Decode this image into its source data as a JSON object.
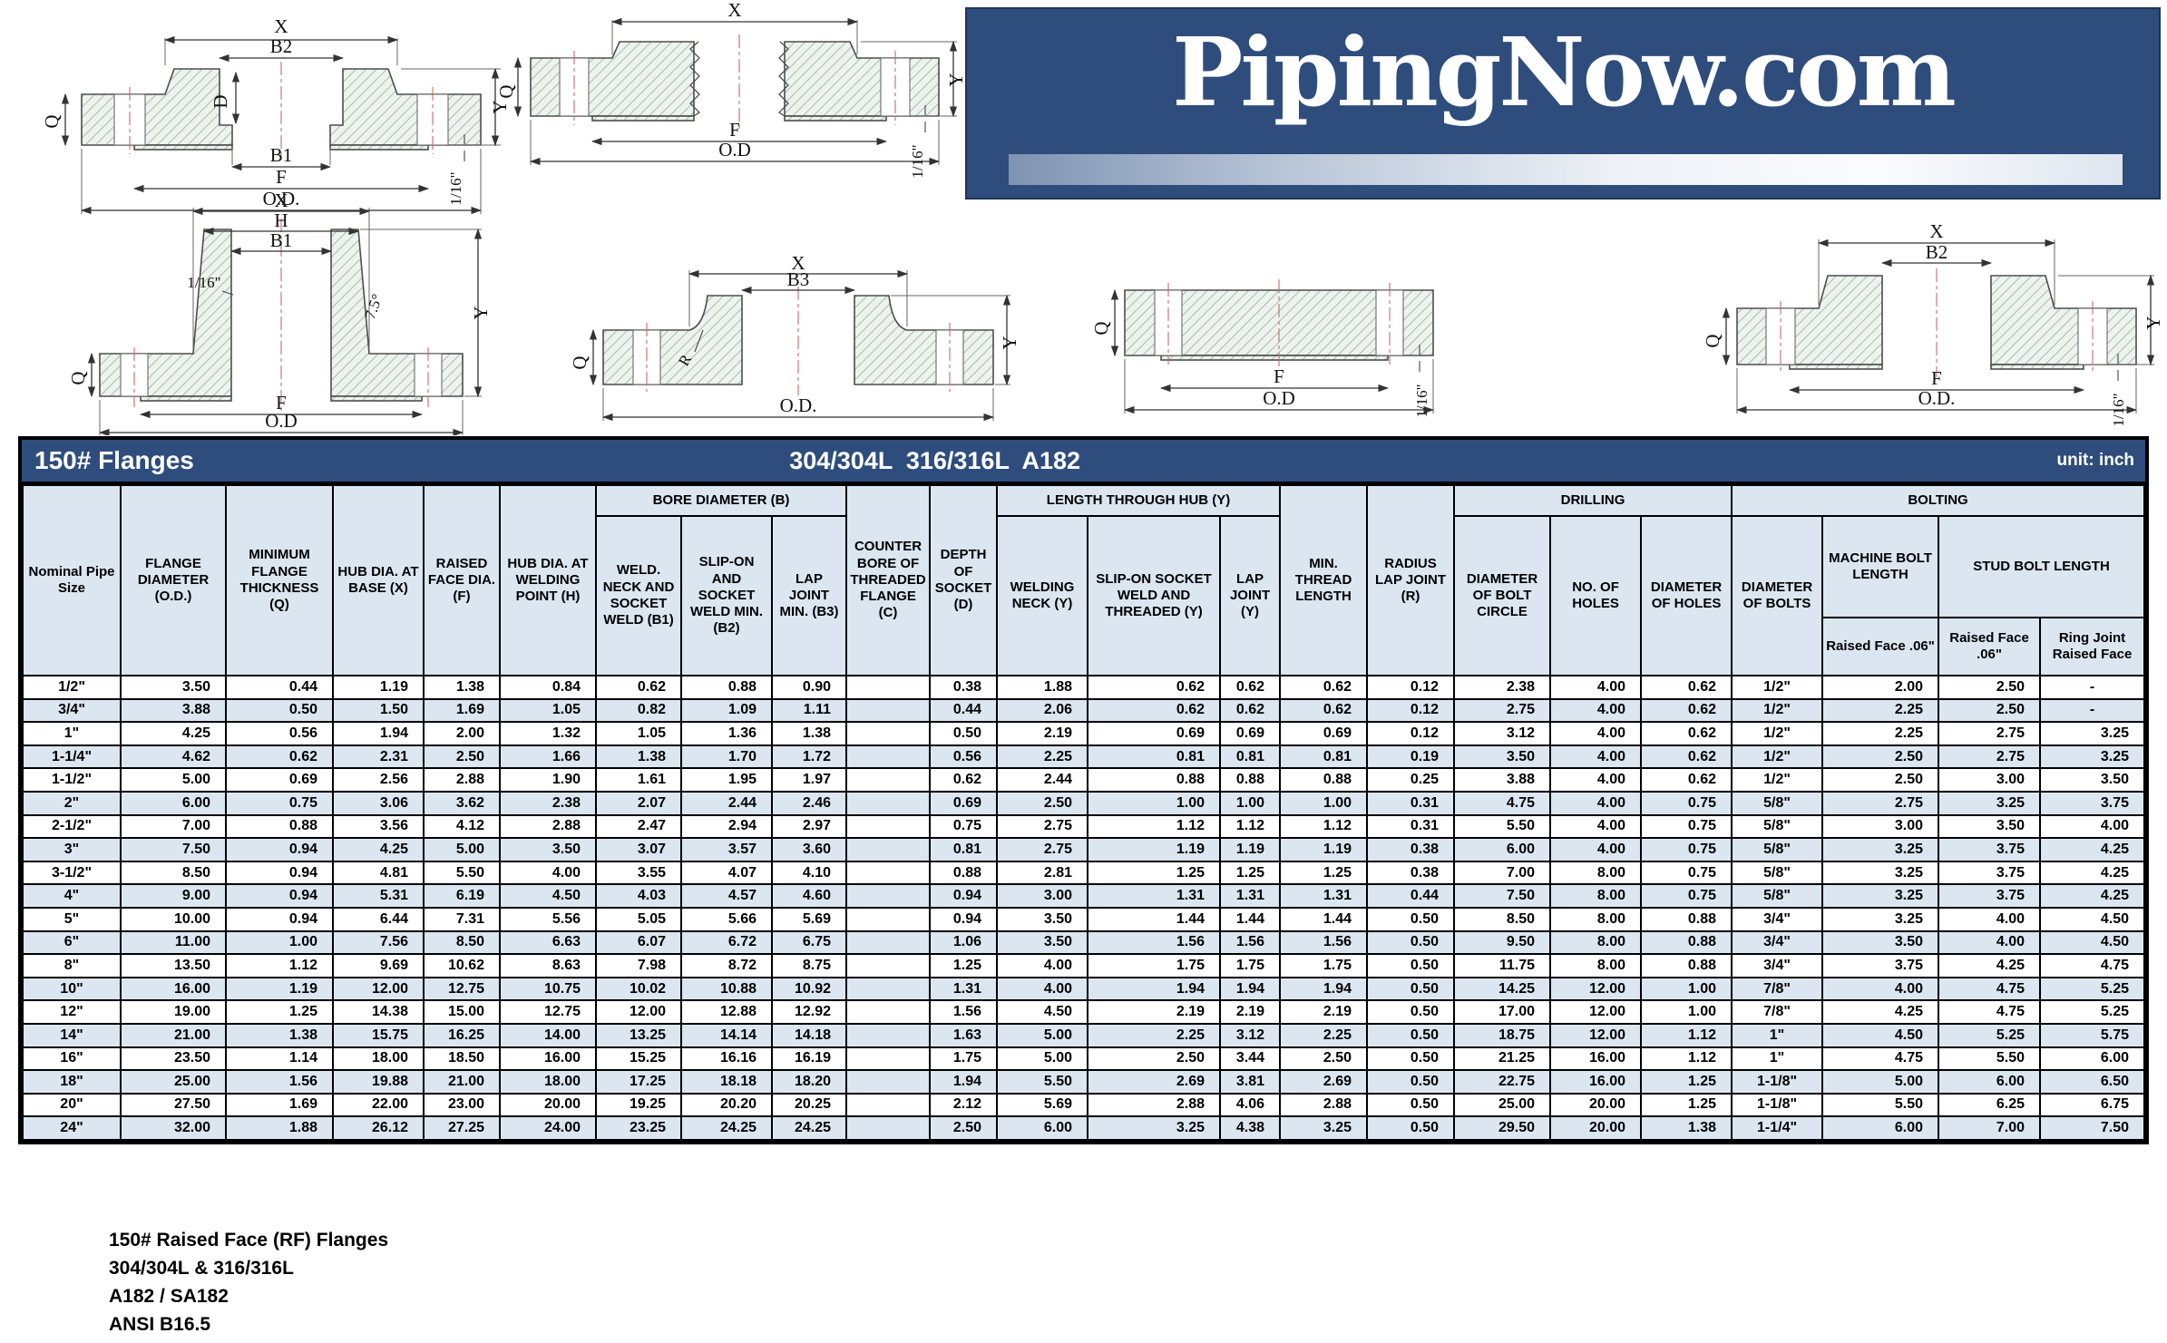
{
  "colors": {
    "banner_blue": "#2e4d7d",
    "header_light_blue": "#dbe6f1",
    "border_black": "#000000",
    "logo_text_white": "#ffffff"
  },
  "logo": {
    "text": "PipingNow.com"
  },
  "title_bar": {
    "left": "150# Flanges",
    "center": "304/304L  316/316L  A182",
    "right": "unit: inch"
  },
  "diagrams": [
    {
      "name": "socket-weld-flange-drawing",
      "labels": [
        "X",
        "B2",
        "D",
        "Q",
        "B1",
        "F",
        "O.D.",
        "Y",
        "1/16\""
      ]
    },
    {
      "name": "threaded-flange-drawing",
      "labels": [
        "X",
        "Q",
        "F",
        "O.D",
        "Y",
        "1/16\""
      ]
    },
    {
      "name": "weld-neck-flange-drawing",
      "labels": [
        "X",
        "H",
        "B1",
        "1/16\"",
        "7.5°",
        "Q",
        "F",
        "O.D",
        "Y"
      ]
    },
    {
      "name": "lap-joint-flange-drawing",
      "labels": [
        "X",
        "B3",
        "Q",
        "R",
        "O.D.",
        "Y"
      ]
    },
    {
      "name": "blind-flange-drawing",
      "labels": [
        "Q",
        "F",
        "O.D",
        "1/16\""
      ]
    },
    {
      "name": "slip-on-flange-drawing",
      "labels": [
        "X",
        "B2",
        "Q",
        "F",
        "O.D.",
        "Y",
        "1/16\""
      ]
    }
  ],
  "table": {
    "header": {
      "nominal": "Nominal Pipe Size",
      "flange_diameter": "FLANGE DIAMETER (O.D.)",
      "min_thickness": "MINIMUM FLANGE THICKNESS (Q)",
      "hub_dia_base": "HUB DIA. AT BASE (X)",
      "raised_face_dia": "RAISED FACE DIA. (F)",
      "hub_dia_welding": "HUB DIA. AT WELDING POINT (H)",
      "bore_group": "BORE DIAMETER (B)",
      "b1": "WELD. NECK AND SOCKET WELD (B1)",
      "b2": "SLIP-ON AND SOCKET WELD MIN. (B2)",
      "b3": "LAP JOINT MIN. (B3)",
      "counter_bore": "COUNTER BORE OF THREADED FLANGE (C)",
      "depth_socket": "DEPTH OF SOCKET (D)",
      "length_group": "LENGTH THROUGH HUB (Y)",
      "welding_neck": "WELDING NECK (Y)",
      "slip_on": "SLIP-ON SOCKET WELD AND THREADED (Y)",
      "lap_joint": "LAP JOINT (Y)",
      "min_thread": "MIN. THREAD LENGTH",
      "radius_lap": "RADIUS LAP JOINT (R)",
      "drilling_group": "DRILLING",
      "bolt_circle": "DIAMETER OF BOLT CIRCLE",
      "no_holes": "NO. OF HOLES",
      "dia_holes": "DIAMETER OF HOLES",
      "bolting_group": "BOLTING",
      "dia_bolts": "DIAMETER OF BOLTS",
      "machine_bolt": "MACHINE BOLT LENGTH",
      "stud_bolt": "STUD BOLT LENGTH",
      "rf06_machine": "Raised Face .06\"",
      "rf06_stud": "Raised Face .06\"",
      "ring_joint": "Ring Joint Raised Face"
    },
    "rows": [
      [
        "1/2\"",
        "3.50",
        "0.44",
        "1.19",
        "1.38",
        "0.84",
        "0.62",
        "0.88",
        "0.90",
        "",
        "0.38",
        "1.88",
        "0.62",
        "0.62",
        "0.62",
        "0.12",
        "2.38",
        "4.00",
        "0.62",
        "1/2\"",
        "2.00",
        "2.50",
        "-"
      ],
      [
        "3/4\"",
        "3.88",
        "0.50",
        "1.50",
        "1.69",
        "1.05",
        "0.82",
        "1.09",
        "1.11",
        "",
        "0.44",
        "2.06",
        "0.62",
        "0.62",
        "0.62",
        "0.12",
        "2.75",
        "4.00",
        "0.62",
        "1/2\"",
        "2.25",
        "2.50",
        "-"
      ],
      [
        "1\"",
        "4.25",
        "0.56",
        "1.94",
        "2.00",
        "1.32",
        "1.05",
        "1.36",
        "1.38",
        "",
        "0.50",
        "2.19",
        "0.69",
        "0.69",
        "0.69",
        "0.12",
        "3.12",
        "4.00",
        "0.62",
        "1/2\"",
        "2.25",
        "2.75",
        "3.25"
      ],
      [
        "1-1/4\"",
        "4.62",
        "0.62",
        "2.31",
        "2.50",
        "1.66",
        "1.38",
        "1.70",
        "1.72",
        "",
        "0.56",
        "2.25",
        "0.81",
        "0.81",
        "0.81",
        "0.19",
        "3.50",
        "4.00",
        "0.62",
        "1/2\"",
        "2.50",
        "2.75",
        "3.25"
      ],
      [
        "1-1/2\"",
        "5.00",
        "0.69",
        "2.56",
        "2.88",
        "1.90",
        "1.61",
        "1.95",
        "1.97",
        "",
        "0.62",
        "2.44",
        "0.88",
        "0.88",
        "0.88",
        "0.25",
        "3.88",
        "4.00",
        "0.62",
        "1/2\"",
        "2.50",
        "3.00",
        "3.50"
      ],
      [
        "2\"",
        "6.00",
        "0.75",
        "3.06",
        "3.62",
        "2.38",
        "2.07",
        "2.44",
        "2.46",
        "",
        "0.69",
        "2.50",
        "1.00",
        "1.00",
        "1.00",
        "0.31",
        "4.75",
        "4.00",
        "0.75",
        "5/8\"",
        "2.75",
        "3.25",
        "3.75"
      ],
      [
        "2-1/2\"",
        "7.00",
        "0.88",
        "3.56",
        "4.12",
        "2.88",
        "2.47",
        "2.94",
        "2.97",
        "",
        "0.75",
        "2.75",
        "1.12",
        "1.12",
        "1.12",
        "0.31",
        "5.50",
        "4.00",
        "0.75",
        "5/8\"",
        "3.00",
        "3.50",
        "4.00"
      ],
      [
        "3\"",
        "7.50",
        "0.94",
        "4.25",
        "5.00",
        "3.50",
        "3.07",
        "3.57",
        "3.60",
        "",
        "0.81",
        "2.75",
        "1.19",
        "1.19",
        "1.19",
        "0.38",
        "6.00",
        "4.00",
        "0.75",
        "5/8\"",
        "3.25",
        "3.75",
        "4.25"
      ],
      [
        "3-1/2\"",
        "8.50",
        "0.94",
        "4.81",
        "5.50",
        "4.00",
        "3.55",
        "4.07",
        "4.10",
        "",
        "0.88",
        "2.81",
        "1.25",
        "1.25",
        "1.25",
        "0.38",
        "7.00",
        "8.00",
        "0.75",
        "5/8\"",
        "3.25",
        "3.75",
        "4.25"
      ],
      [
        "4\"",
        "9.00",
        "0.94",
        "5.31",
        "6.19",
        "4.50",
        "4.03",
        "4.57",
        "4.60",
        "",
        "0.94",
        "3.00",
        "1.31",
        "1.31",
        "1.31",
        "0.44",
        "7.50",
        "8.00",
        "0.75",
        "5/8\"",
        "3.25",
        "3.75",
        "4.25"
      ],
      [
        "5\"",
        "10.00",
        "0.94",
        "6.44",
        "7.31",
        "5.56",
        "5.05",
        "5.66",
        "5.69",
        "",
        "0.94",
        "3.50",
        "1.44",
        "1.44",
        "1.44",
        "0.50",
        "8.50",
        "8.00",
        "0.88",
        "3/4\"",
        "3.25",
        "4.00",
        "4.50"
      ],
      [
        "6\"",
        "11.00",
        "1.00",
        "7.56",
        "8.50",
        "6.63",
        "6.07",
        "6.72",
        "6.75",
        "",
        "1.06",
        "3.50",
        "1.56",
        "1.56",
        "1.56",
        "0.50",
        "9.50",
        "8.00",
        "0.88",
        "3/4\"",
        "3.50",
        "4.00",
        "4.50"
      ],
      [
        "8\"",
        "13.50",
        "1.12",
        "9.69",
        "10.62",
        "8.63",
        "7.98",
        "8.72",
        "8.75",
        "",
        "1.25",
        "4.00",
        "1.75",
        "1.75",
        "1.75",
        "0.50",
        "11.75",
        "8.00",
        "0.88",
        "3/4\"",
        "3.75",
        "4.25",
        "4.75"
      ],
      [
        "10\"",
        "16.00",
        "1.19",
        "12.00",
        "12.75",
        "10.75",
        "10.02",
        "10.88",
        "10.92",
        "",
        "1.31",
        "4.00",
        "1.94",
        "1.94",
        "1.94",
        "0.50",
        "14.25",
        "12.00",
        "1.00",
        "7/8\"",
        "4.00",
        "4.75",
        "5.25"
      ],
      [
        "12\"",
        "19.00",
        "1.25",
        "14.38",
        "15.00",
        "12.75",
        "12.00",
        "12.88",
        "12.92",
        "",
        "1.56",
        "4.50",
        "2.19",
        "2.19",
        "2.19",
        "0.50",
        "17.00",
        "12.00",
        "1.00",
        "7/8\"",
        "4.25",
        "4.75",
        "5.25"
      ],
      [
        "14\"",
        "21.00",
        "1.38",
        "15.75",
        "16.25",
        "14.00",
        "13.25",
        "14.14",
        "14.18",
        "",
        "1.63",
        "5.00",
        "2.25",
        "3.12",
        "2.25",
        "0.50",
        "18.75",
        "12.00",
        "1.12",
        "1\"",
        "4.50",
        "5.25",
        "5.75"
      ],
      [
        "16\"",
        "23.50",
        "1.14",
        "18.00",
        "18.50",
        "16.00",
        "15.25",
        "16.16",
        "16.19",
        "",
        "1.75",
        "5.00",
        "2.50",
        "3.44",
        "2.50",
        "0.50",
        "21.25",
        "16.00",
        "1.12",
        "1\"",
        "4.75",
        "5.50",
        "6.00"
      ],
      [
        "18\"",
        "25.00",
        "1.56",
        "19.88",
        "21.00",
        "18.00",
        "17.25",
        "18.18",
        "18.20",
        "",
        "1.94",
        "5.50",
        "2.69",
        "3.81",
        "2.69",
        "0.50",
        "22.75",
        "16.00",
        "1.25",
        "1-1/8\"",
        "5.00",
        "6.00",
        "6.50"
      ],
      [
        "20\"",
        "27.50",
        "1.69",
        "22.00",
        "23.00",
        "20.00",
        "19.25",
        "20.20",
        "20.25",
        "",
        "2.12",
        "5.69",
        "2.88",
        "4.06",
        "2.88",
        "0.50",
        "25.00",
        "20.00",
        "1.25",
        "1-1/8\"",
        "5.50",
        "6.25",
        "6.75"
      ],
      [
        "24\"",
        "32.00",
        "1.88",
        "26.12",
        "27.25",
        "24.00",
        "23.25",
        "24.25",
        "24.25",
        "",
        "2.50",
        "6.00",
        "3.25",
        "4.38",
        "3.25",
        "0.50",
        "29.50",
        "20.00",
        "1.38",
        "1-1/4\"",
        "6.00",
        "7.00",
        "7.50"
      ]
    ]
  },
  "footer": {
    "lines": [
      "150# Raised Face (RF) Flanges",
      "304/304L & 316/316L",
      "A182 / SA182",
      "ANSI B16.5"
    ]
  }
}
